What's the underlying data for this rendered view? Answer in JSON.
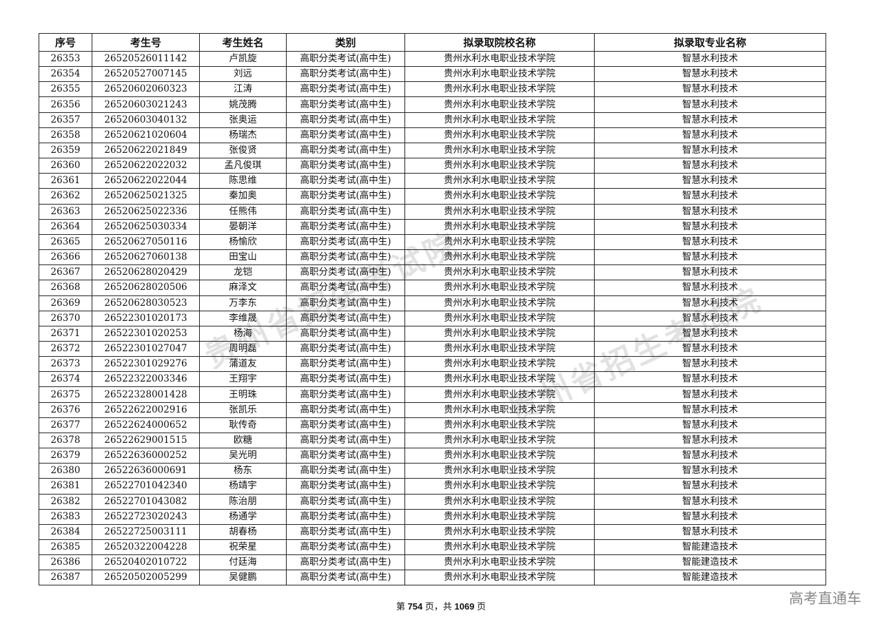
{
  "table": {
    "headers": [
      "序号",
      "考生号",
      "考生姓名",
      "类别",
      "拟录取院校名称",
      "拟录取专业名称"
    ],
    "rows": [
      [
        "26353",
        "26520526011142",
        "卢凯旋",
        "高职分类考试(高中生)",
        "贵州水利水电职业技术学院",
        "智慧水利技术"
      ],
      [
        "26354",
        "26520527007145",
        "刘远",
        "高职分类考试(高中生)",
        "贵州水利水电职业技术学院",
        "智慧水利技术"
      ],
      [
        "26355",
        "26520602060323",
        "江涛",
        "高职分类考试(高中生)",
        "贵州水利水电职业技术学院",
        "智慧水利技术"
      ],
      [
        "26356",
        "26520603021243",
        "姚茂腾",
        "高职分类考试(高中生)",
        "贵州水利水电职业技术学院",
        "智慧水利技术"
      ],
      [
        "26357",
        "26520603040132",
        "张奥运",
        "高职分类考试(高中生)",
        "贵州水利水电职业技术学院",
        "智慧水利技术"
      ],
      [
        "26358",
        "26520621020604",
        "杨瑞杰",
        "高职分类考试(高中生)",
        "贵州水利水电职业技术学院",
        "智慧水利技术"
      ],
      [
        "26359",
        "26520622021849",
        "张俊贤",
        "高职分类考试(高中生)",
        "贵州水利水电职业技术学院",
        "智慧水利技术"
      ],
      [
        "26360",
        "26520622022032",
        "孟凡俊琪",
        "高职分类考试(高中生)",
        "贵州水利水电职业技术学院",
        "智慧水利技术"
      ],
      [
        "26361",
        "26520622022044",
        "陈思维",
        "高职分类考试(高中生)",
        "贵州水利水电职业技术学院",
        "智慧水利技术"
      ],
      [
        "26362",
        "26520625021325",
        "秦加奥",
        "高职分类考试(高中生)",
        "贵州水利水电职业技术学院",
        "智慧水利技术"
      ],
      [
        "26363",
        "26520625022336",
        "任熊伟",
        "高职分类考试(高中生)",
        "贵州水利水电职业技术学院",
        "智慧水利技术"
      ],
      [
        "26364",
        "26520625030334",
        "晏朝洋",
        "高职分类考试(高中生)",
        "贵州水利水电职业技术学院",
        "智慧水利技术"
      ],
      [
        "26365",
        "26520627050116",
        "杨愉欣",
        "高职分类考试(高中生)",
        "贵州水利水电职业技术学院",
        "智慧水利技术"
      ],
      [
        "26366",
        "26520627060138",
        "田宝山",
        "高职分类考试(高中生)",
        "贵州水利水电职业技术学院",
        "智慧水利技术"
      ],
      [
        "26367",
        "26520628020429",
        "龙铠",
        "高职分类考试(高中生)",
        "贵州水利水电职业技术学院",
        "智慧水利技术"
      ],
      [
        "26368",
        "26520628020506",
        "麻泽文",
        "高职分类考试(高中生)",
        "贵州水利水电职业技术学院",
        "智慧水利技术"
      ],
      [
        "26369",
        "26520628030523",
        "万李东",
        "高职分类考试(高中生)",
        "贵州水利水电职业技术学院",
        "智慧水利技术"
      ],
      [
        "26370",
        "26522301020173",
        "李维晟",
        "高职分类考试(高中生)",
        "贵州水利水电职业技术学院",
        "智慧水利技术"
      ],
      [
        "26371",
        "26522301020253",
        "杨海",
        "高职分类考试(高中生)",
        "贵州水利水电职业技术学院",
        "智慧水利技术"
      ],
      [
        "26372",
        "26522301027047",
        "周明磊",
        "高职分类考试(高中生)",
        "贵州水利水电职业技术学院",
        "智慧水利技术"
      ],
      [
        "26373",
        "26522301029276",
        "蒲道友",
        "高职分类考试(高中生)",
        "贵州水利水电职业技术学院",
        "智慧水利技术"
      ],
      [
        "26374",
        "26522322003346",
        "王翔宇",
        "高职分类考试(高中生)",
        "贵州水利水电职业技术学院",
        "智慧水利技术"
      ],
      [
        "26375",
        "26522328001428",
        "王明珠",
        "高职分类考试(高中生)",
        "贵州水利水电职业技术学院",
        "智慧水利技术"
      ],
      [
        "26376",
        "26522622002916",
        "张凯乐",
        "高职分类考试(高中生)",
        "贵州水利水电职业技术学院",
        "智慧水利技术"
      ],
      [
        "26377",
        "26522624000652",
        "耿传奇",
        "高职分类考试(高中生)",
        "贵州水利水电职业技术学院",
        "智慧水利技术"
      ],
      [
        "26378",
        "26522629001515",
        "欧糖",
        "高职分类考试(高中生)",
        "贵州水利水电职业技术学院",
        "智慧水利技术"
      ],
      [
        "26379",
        "26522636000252",
        "吴光明",
        "高职分类考试(高中生)",
        "贵州水利水电职业技术学院",
        "智慧水利技术"
      ],
      [
        "26380",
        "26522636000691",
        "杨东",
        "高职分类考试(高中生)",
        "贵州水利水电职业技术学院",
        "智慧水利技术"
      ],
      [
        "26381",
        "26522701042340",
        "杨靖宇",
        "高职分类考试(高中生)",
        "贵州水利水电职业技术学院",
        "智慧水利技术"
      ],
      [
        "26382",
        "26522701043082",
        "陈治朋",
        "高职分类考试(高中生)",
        "贵州水利水电职业技术学院",
        "智慧水利技术"
      ],
      [
        "26383",
        "26522723020243",
        "杨通学",
        "高职分类考试(高中生)",
        "贵州水利水电职业技术学院",
        "智慧水利技术"
      ],
      [
        "26384",
        "26522725003111",
        "胡春杨",
        "高职分类考试(高中生)",
        "贵州水利水电职业技术学院",
        "智慧水利技术"
      ],
      [
        "26385",
        "26520322004228",
        "祝荣星",
        "高职分类考试(高中生)",
        "贵州水利水电职业技术学院",
        "智能建造技术"
      ],
      [
        "26386",
        "26520402010722",
        "付廷海",
        "高职分类考试(高中生)",
        "贵州水利水电职业技术学院",
        "智能建造技术"
      ],
      [
        "26387",
        "26520502005299",
        "吴健鹏",
        "高职分类考试(高中生)",
        "贵州水利水电职业技术学院",
        "智能建造技术"
      ]
    ]
  },
  "footer": {
    "prefix": "第 ",
    "page": "754",
    "middle": " 页，共 ",
    "total": "1069",
    "suffix": " 页"
  },
  "brand": "高考直通车",
  "watermark": "贵州省招生考试院"
}
